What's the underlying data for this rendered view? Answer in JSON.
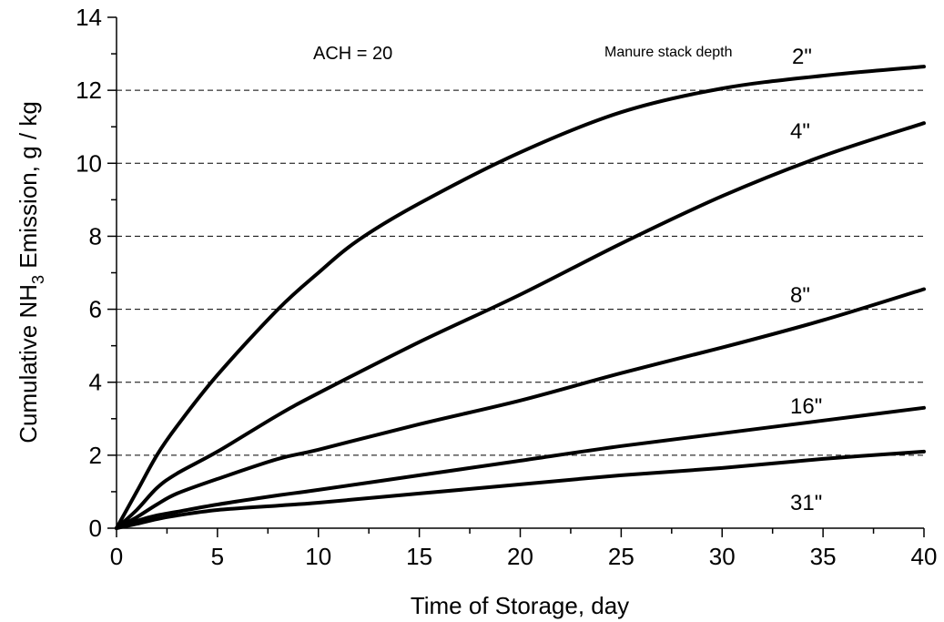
{
  "chart_data": {
    "type": "line",
    "title": "",
    "xlabel": "Time of Storage, day",
    "ylabel_main": "Cumulative NH",
    "ylabel_sub": "3",
    "ylabel_rest": " Emission, g / kg",
    "xlim": [
      0,
      40
    ],
    "ylim": [
      0,
      14
    ],
    "xticks": [
      0,
      5,
      10,
      15,
      20,
      25,
      30,
      35,
      40
    ],
    "yticks": [
      0,
      2,
      4,
      6,
      8,
      10,
      12,
      14
    ],
    "grid": "horizontal dashed",
    "annotations": {
      "ach": "ACH = 20",
      "legend_title": "Manure stack depth"
    },
    "series": [
      {
        "name": "2\"",
        "x": [
          0,
          1,
          2,
          3,
          5,
          8,
          10,
          12,
          15,
          20,
          25,
          30,
          35,
          40
        ],
        "values": [
          0,
          1.0,
          2.0,
          2.8,
          4.2,
          6.0,
          7.0,
          7.9,
          8.9,
          10.3,
          11.4,
          12.05,
          12.4,
          12.65
        ]
      },
      {
        "name": "4\"",
        "x": [
          0,
          1,
          2,
          3,
          5,
          8,
          10,
          15,
          20,
          25,
          30,
          35,
          40
        ],
        "values": [
          0,
          0.5,
          1.1,
          1.5,
          2.1,
          3.1,
          3.7,
          5.1,
          6.4,
          7.8,
          9.1,
          10.2,
          11.1
        ]
      },
      {
        "name": "8\"",
        "x": [
          0,
          1,
          2,
          3,
          5,
          8,
          10,
          15,
          20,
          25,
          30,
          35,
          40
        ],
        "values": [
          0,
          0.3,
          0.65,
          0.95,
          1.35,
          1.9,
          2.15,
          2.85,
          3.5,
          4.25,
          4.95,
          5.7,
          6.55
        ]
      },
      {
        "name": "16\"",
        "x": [
          0,
          1,
          2,
          3,
          5,
          8,
          10,
          15,
          20,
          25,
          30,
          35,
          40
        ],
        "values": [
          0,
          0.2,
          0.35,
          0.45,
          0.65,
          0.9,
          1.05,
          1.45,
          1.85,
          2.25,
          2.6,
          2.95,
          3.3
        ]
      },
      {
        "name": "31\"",
        "x": [
          0,
          1,
          2,
          3,
          5,
          8,
          10,
          15,
          20,
          25,
          30,
          35,
          40
        ],
        "values": [
          0,
          0.12,
          0.25,
          0.35,
          0.5,
          0.62,
          0.7,
          0.95,
          1.2,
          1.45,
          1.65,
          1.9,
          2.1
        ]
      }
    ]
  }
}
